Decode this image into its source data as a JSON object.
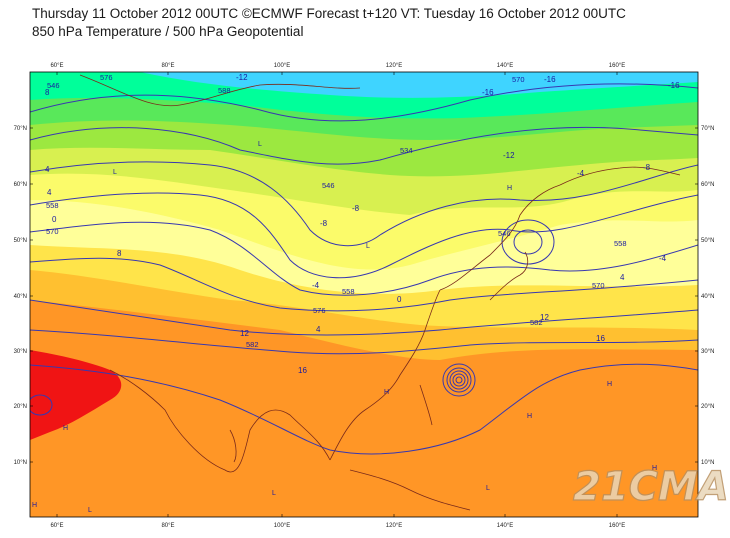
{
  "title": {
    "line1": "Thursday 11 October 2012 00UTC ©ECMWF Forecast t+120 VT: Tuesday 16 October 2012 00UTC",
    "line2": "850 hPa Temperature / 500 hPa Geopotential"
  },
  "axes": {
    "lon_labels": [
      "60°E",
      "80°E",
      "100°E",
      "120°E",
      "140°E",
      "160°E"
    ],
    "lat_labels": [
      "70°N",
      "60°N",
      "50°N",
      "40°N",
      "30°N",
      "20°N",
      "10°N"
    ]
  },
  "colors": {
    "bg": "#ffffff",
    "temp_bands": [
      "#3fd4ff",
      "#00ff9a",
      "#59e85a",
      "#9ce840",
      "#d8f050",
      "#fbfb6a",
      "#ffff99",
      "#ffe44a",
      "#ffc030",
      "#ff9626",
      "#ff7a1a",
      "#f01414"
    ],
    "contour": "#3838b0",
    "coast": "#7a2a1a"
  },
  "geopotential_labels": [
    "546",
    "534",
    "570",
    "546",
    "546",
    "558",
    "570",
    "576",
    "558",
    "558",
    "570",
    "582",
    "582",
    "576",
    "588"
  ],
  "temperature_labels": [
    "-12",
    "-16",
    "-16",
    "-16",
    "-12",
    "-4",
    "-8",
    "-8",
    "0",
    "4",
    "8",
    "12",
    "12",
    "16",
    "16",
    "4",
    "4",
    "-4",
    "-8",
    "0",
    "4",
    "8",
    "-4"
  ],
  "pressure_centres": [
    "L",
    "L",
    "L",
    "H",
    "H",
    "H",
    "H",
    "H",
    "L",
    "H",
    "L",
    "H",
    "L"
  ],
  "watermark": "21CMA"
}
